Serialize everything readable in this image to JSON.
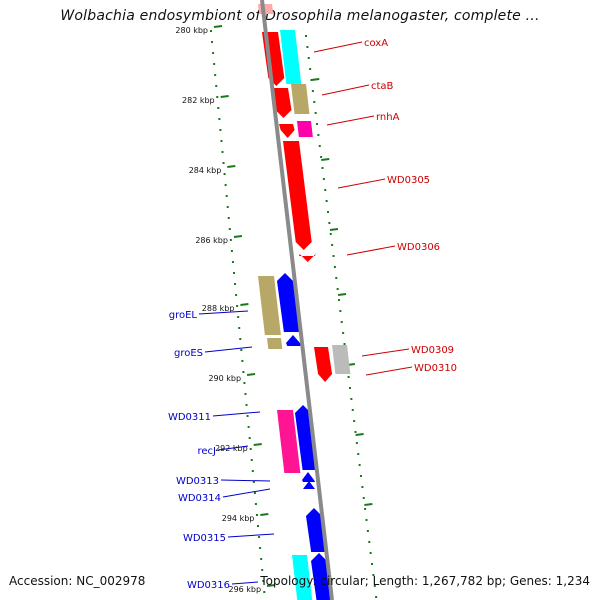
{
  "header": {
    "title": "Wolbachia endosymbiont of Drosophila melanogaster, complete ..."
  },
  "footer": {
    "accession": "Accession: NC_002978",
    "topology": "Topology: circular; Length: 1,267,782 bp; Genes: 1,234"
  },
  "colors": {
    "backbone": "#8a8a8a",
    "forward_label": "#0000cc",
    "reverse_label": "#cc0000",
    "tick": "#1a7a1a"
  },
  "ticks": [
    "280 kbp",
    "282 kbp",
    "284 kbp",
    "286 kbp",
    "288 kbp",
    "290 kbp",
    "292 kbp",
    "294 kbp",
    "296 kbp"
  ],
  "genes": {
    "reverse": [
      "coxA",
      "ctaB",
      "rnhA",
      "WD0305",
      "WD0306",
      "WD0309",
      "WD0310"
    ],
    "forward": [
      "groEL",
      "groES",
      "WD0311",
      "recJ",
      "WD0313",
      "WD0314",
      "WD0315",
      "WD0316"
    ]
  }
}
